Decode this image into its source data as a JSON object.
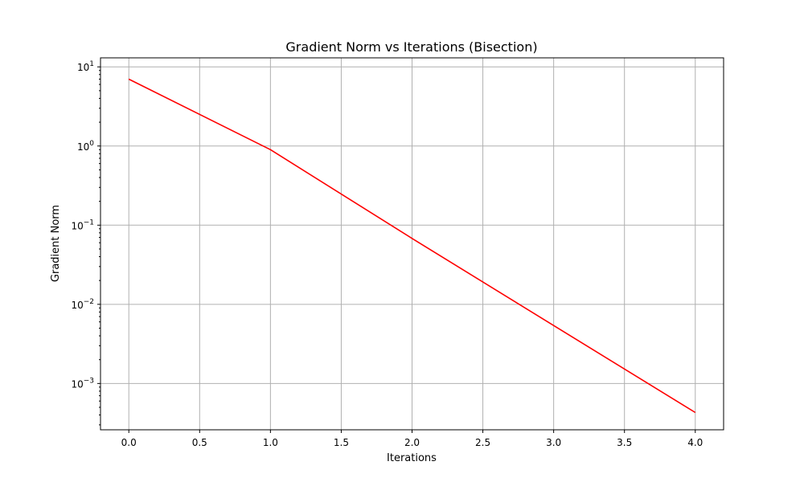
{
  "chart_data": {
    "type": "line",
    "title": "Gradient Norm vs Iterations (Bisection)",
    "xlabel": "Iterations",
    "ylabel": "Gradient Norm",
    "xscale": "linear",
    "yscale": "log",
    "xlim": [
      -0.2,
      4.2
    ],
    "ylim": [
      0.00026,
      13
    ],
    "grid": true,
    "xticks": [
      0.0,
      0.5,
      1.0,
      1.5,
      2.0,
      2.5,
      3.0,
      3.5,
      4.0
    ],
    "xtick_labels": [
      "0.0",
      "0.5",
      "1.0",
      "1.5",
      "2.0",
      "2.5",
      "3.0",
      "3.5",
      "4.0"
    ],
    "yticks": [
      0.001,
      0.01,
      0.1,
      1,
      10
    ],
    "ytick_labels": [
      {
        "base": "10",
        "exp": "−3"
      },
      {
        "base": "10",
        "exp": "−2"
      },
      {
        "base": "10",
        "exp": "−1"
      },
      {
        "base": "10",
        "exp": "0"
      },
      {
        "base": "10",
        "exp": "1"
      }
    ],
    "series": [
      {
        "color": "#ff0000",
        "x": [
          0,
          1,
          2,
          3,
          4
        ],
        "y": [
          7.0,
          0.9,
          0.068,
          0.0054,
          0.00043
        ]
      }
    ]
  }
}
